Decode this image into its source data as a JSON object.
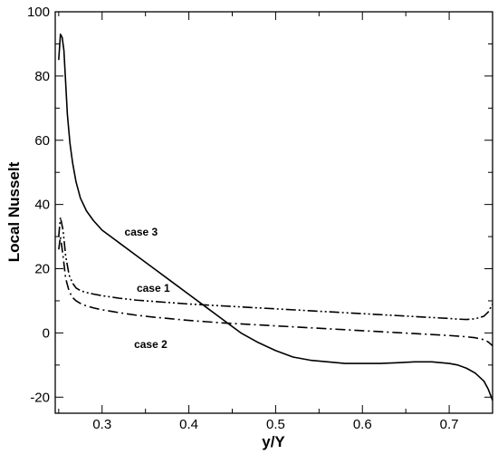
{
  "chart_data": {
    "type": "line",
    "xlabel": "y/Y",
    "ylabel": "Local Nusselt",
    "xlim": [
      0.246,
      0.75
    ],
    "ylim": [
      -25,
      100
    ],
    "xticks": [
      0.3,
      0.4,
      0.5,
      0.6,
      0.7
    ],
    "xtick_labels": [
      "0.3",
      "0.4",
      "0.5",
      "0.6",
      "0.7"
    ],
    "yticks": [
      -20,
      0,
      20,
      40,
      60,
      80,
      100
    ],
    "ytick_labels": [
      "-20",
      "0",
      "20",
      "40",
      "60",
      "80",
      "100"
    ],
    "grid": false,
    "legend": "none",
    "series": [
      {
        "name": "case 3",
        "style": "solid",
        "color": "#000000",
        "x": [
          0.25,
          0.252,
          0.254,
          0.256,
          0.258,
          0.26,
          0.263,
          0.266,
          0.27,
          0.275,
          0.282,
          0.29,
          0.3,
          0.32,
          0.34,
          0.36,
          0.38,
          0.4,
          0.42,
          0.44,
          0.46,
          0.48,
          0.5,
          0.52,
          0.54,
          0.56,
          0.58,
          0.6,
          0.62,
          0.64,
          0.66,
          0.68,
          0.7,
          0.71,
          0.72,
          0.73,
          0.74,
          0.745,
          0.75
        ],
        "y": [
          85,
          93,
          92,
          88,
          78,
          68,
          59,
          53,
          47,
          42,
          38,
          35,
          32,
          28,
          24,
          20,
          16,
          12,
          8,
          4,
          0,
          -3,
          -5.5,
          -7.5,
          -8.5,
          -9,
          -9.5,
          -9.5,
          -9.5,
          -9.3,
          -9,
          -9,
          -9.5,
          -10,
          -11,
          -12.5,
          -15,
          -17.5,
          -21
        ]
      },
      {
        "name": "case 1",
        "style": "dash-dot-dot",
        "color": "#000000",
        "x": [
          0.25,
          0.252,
          0.255,
          0.258,
          0.262,
          0.266,
          0.27,
          0.275,
          0.28,
          0.29,
          0.3,
          0.32,
          0.34,
          0.36,
          0.38,
          0.4,
          0.42,
          0.44,
          0.46,
          0.48,
          0.5,
          0.52,
          0.54,
          0.56,
          0.58,
          0.6,
          0.62,
          0.64,
          0.66,
          0.68,
          0.7,
          0.71,
          0.72,
          0.73,
          0.74,
          0.745,
          0.75
        ],
        "y": [
          30,
          36,
          32,
          24,
          18,
          15.5,
          14,
          13.2,
          12.7,
          12.1,
          11.6,
          10.8,
          10.2,
          9.8,
          9.4,
          9,
          8.7,
          8.4,
          8.1,
          7.8,
          7.5,
          7.2,
          6.9,
          6.6,
          6.3,
          6,
          5.7,
          5.4,
          5.1,
          4.8,
          4.5,
          4.3,
          4.2,
          4.4,
          5.2,
          6.5,
          9
        ]
      },
      {
        "name": "case 2",
        "style": "dash-dot",
        "color": "#000000",
        "x": [
          0.25,
          0.252,
          0.255,
          0.258,
          0.262,
          0.266,
          0.27,
          0.275,
          0.28,
          0.29,
          0.3,
          0.32,
          0.34,
          0.36,
          0.38,
          0.4,
          0.42,
          0.44,
          0.46,
          0.48,
          0.5,
          0.52,
          0.54,
          0.56,
          0.58,
          0.6,
          0.62,
          0.64,
          0.66,
          0.68,
          0.7,
          0.71,
          0.72,
          0.73,
          0.74,
          0.745,
          0.75
        ],
        "y": [
          26,
          30,
          24,
          17,
          13,
          11,
          10,
          9.2,
          8.6,
          7.8,
          7.2,
          6.3,
          5.5,
          4.9,
          4.4,
          3.9,
          3.5,
          3.1,
          2.8,
          2.5,
          2.2,
          1.9,
          1.6,
          1.3,
          1,
          0.7,
          0.4,
          0.1,
          -0.2,
          -0.5,
          -0.8,
          -1,
          -1.2,
          -1.5,
          -2.1,
          -2.8,
          -4
        ]
      }
    ],
    "annotations": [
      {
        "text": "case 3",
        "x": 0.345,
        "y": 31.5
      },
      {
        "text": "case 1",
        "x": 0.359,
        "y": 14
      },
      {
        "text": "case 2",
        "x": 0.356,
        "y": -3.5
      }
    ]
  }
}
